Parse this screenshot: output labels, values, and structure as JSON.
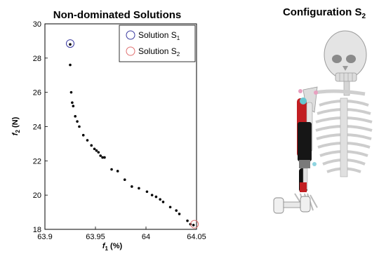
{
  "chart_data": {
    "type": "scatter",
    "title": "Non-dominated Solutions",
    "xlabel": {
      "main": "f",
      "sub": "1",
      "unit": " (%)"
    },
    "ylabel": {
      "main": "f",
      "sub": "2",
      "unit": " (N)"
    },
    "xlim": [
      63.9,
      64.05
    ],
    "ylim": [
      18,
      30
    ],
    "x_ticks": [
      63.9,
      63.95,
      64.0,
      64.05
    ],
    "x_tick_labels": [
      "63.9",
      "63.95",
      "64",
      "64.05"
    ],
    "y_ticks": [
      18,
      20,
      22,
      24,
      26,
      28,
      30
    ],
    "y_tick_labels": [
      "18",
      "20",
      "22",
      "24",
      "26",
      "28",
      "30"
    ],
    "grid": false,
    "legend_position": "top-right",
    "legend": [
      {
        "main": "Solution S",
        "sub": "1",
        "marker": "circle",
        "color": "#3a3aa0"
      },
      {
        "main": "Solution S",
        "sub": "2",
        "marker": "circle",
        "color": "#e07070"
      }
    ],
    "series": [
      {
        "marker": "dot",
        "color": "#000000",
        "x": [
          63.925,
          63.925,
          63.926,
          63.927,
          63.928,
          63.93,
          63.932,
          63.934,
          63.938,
          63.942,
          63.946,
          63.949,
          63.951,
          63.953,
          63.955,
          63.957,
          63.959,
          63.966,
          63.972,
          63.979,
          63.986,
          63.993,
          64.001,
          64.006,
          64.01,
          64.014,
          64.017,
          64.024,
          64.03,
          64.033,
          64.041,
          64.044,
          64.047
        ],
        "y": [
          28.8,
          27.6,
          26.0,
          25.4,
          25.2,
          24.6,
          24.3,
          24.0,
          23.5,
          23.2,
          22.9,
          22.7,
          22.6,
          22.5,
          22.3,
          22.2,
          22.2,
          21.5,
          21.4,
          20.9,
          20.5,
          20.4,
          20.2,
          20.0,
          19.9,
          19.75,
          19.6,
          19.3,
          19.1,
          18.9,
          18.5,
          18.3,
          18.25
        ]
      }
    ],
    "highlighted": [
      {
        "label": "S1",
        "x": 63.925,
        "y": 28.85,
        "color": "#3a3aa0"
      },
      {
        "label": "S2",
        "x": 64.048,
        "y": 18.3,
        "color": "#e07070"
      }
    ]
  },
  "panel": {
    "title_main": "Configuration S",
    "title_sub": "2"
  }
}
